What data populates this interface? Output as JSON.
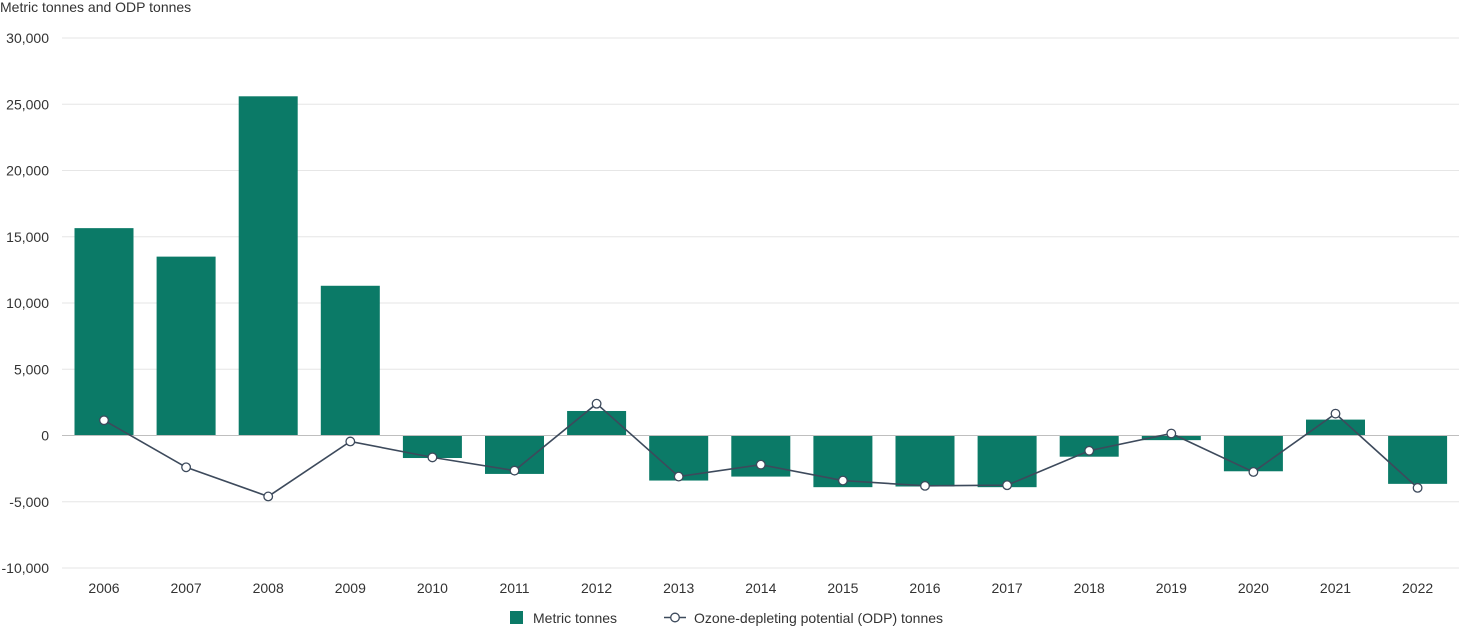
{
  "chart_data": {
    "type": "bar",
    "title": "",
    "ylabel": "Metric tonnes and ODP tonnes",
    "xlabel": "",
    "ylim": [
      -10000,
      30000
    ],
    "yticks": [
      30000,
      25000,
      20000,
      15000,
      10000,
      5000,
      0,
      -5000,
      -10000
    ],
    "ytick_labels": [
      "30,000",
      "25,000",
      "20,000",
      "15,000",
      "10,000",
      "5,000",
      "0",
      "-5,000",
      "-10,000"
    ],
    "grid": true,
    "legend_position": "bottom-center",
    "categories": [
      "2006",
      "2007",
      "2008",
      "2009",
      "2010",
      "2011",
      "2012",
      "2013",
      "2014",
      "2015",
      "2016",
      "2017",
      "2018",
      "2019",
      "2020",
      "2021",
      "2022"
    ],
    "series": [
      {
        "name": "Metric tonnes",
        "type": "bar",
        "color": "#0b7a67",
        "values": [
          15650,
          13500,
          25600,
          11300,
          -1700,
          -2900,
          1850,
          -3400,
          -3100,
          -3900,
          -3850,
          -3900,
          -1600,
          -350,
          -2700,
          1200,
          -3650
        ]
      },
      {
        "name": "Ozone-depleting potential (ODP) tonnes",
        "type": "line",
        "color": "#3d4a5c",
        "values": [
          1150,
          -2400,
          -4600,
          -450,
          -1650,
          -2650,
          2400,
          -3100,
          -2200,
          -3400,
          -3800,
          -3750,
          -1150,
          150,
          -2750,
          1650,
          -3950
        ]
      }
    ]
  }
}
